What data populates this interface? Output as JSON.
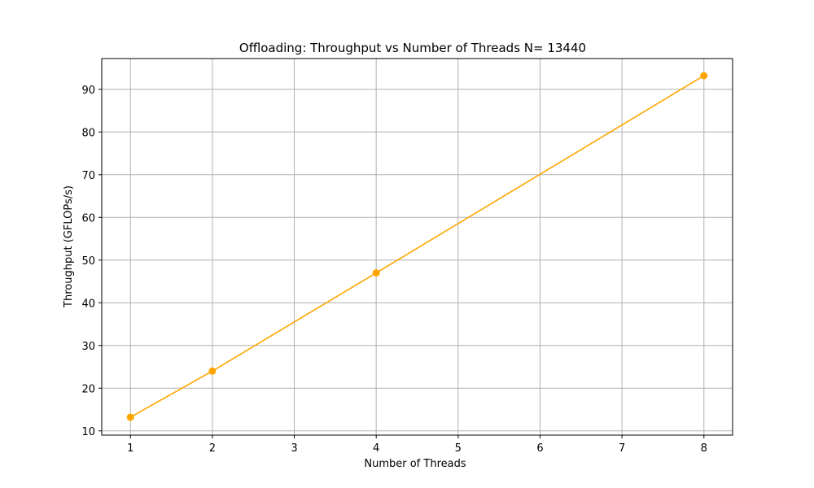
{
  "chart_data": {
    "type": "line",
    "title": "Offloading: Throughput vs Number of Threads N= 13440",
    "xlabel": "Number of Threads",
    "ylabel": "Throughput (GFLOPs/s)",
    "xlim": [
      0.65,
      8.35
    ],
    "ylim": [
      9.0,
      97.2
    ],
    "xticks": [
      1,
      2,
      3,
      4,
      5,
      6,
      7,
      8
    ],
    "yticks": [
      10,
      20,
      30,
      40,
      50,
      60,
      70,
      80,
      90
    ],
    "grid": true,
    "series": [
      {
        "color": "#ffa500",
        "marker": "circle",
        "x": [
          1,
          2,
          4,
          8
        ],
        "values": [
          13.2,
          24.0,
          47.0,
          93.2
        ]
      }
    ]
  }
}
